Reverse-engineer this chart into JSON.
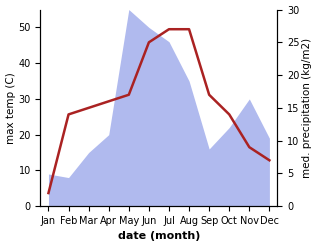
{
  "months": [
    "Jan",
    "Feb",
    "Mar",
    "Apr",
    "May",
    "Jun",
    "Jul",
    "Aug",
    "Sep",
    "Oct",
    "Nov",
    "Dec"
  ],
  "temperature": [
    2,
    14,
    15,
    16,
    17,
    25,
    27,
    27,
    17,
    14,
    9,
    7
  ],
  "precipitation": [
    9,
    8,
    15,
    20,
    55,
    50,
    46,
    35,
    16,
    22,
    30,
    19
  ],
  "temp_color": "#aa2222",
  "precip_color": "#b0baee",
  "ylabel_left": "max temp (C)",
  "ylabel_right": "med. precipitation (kg/m2)",
  "xlabel": "date (month)",
  "ylim_left": [
    0,
    55
  ],
  "ylim_right": [
    0,
    30
  ],
  "background_color": "#ffffff",
  "temp_linewidth": 1.8,
  "xlabel_fontsize": 8,
  "ylabel_fontsize": 7.5,
  "tick_fontsize": 7
}
